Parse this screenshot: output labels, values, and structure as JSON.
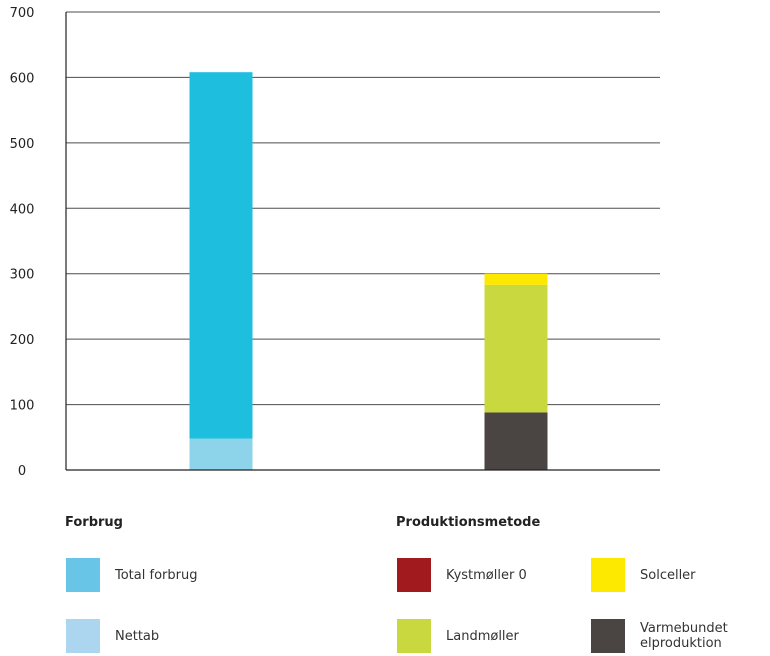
{
  "chart_data": {
    "type": "bar",
    "stacked": true,
    "categories": [
      "Forbrug",
      "Produktionsmetode"
    ],
    "ylim": [
      0,
      700
    ],
    "yticks": [
      0,
      100,
      200,
      300,
      400,
      500,
      600,
      700
    ],
    "grid": true,
    "series": [
      {
        "name": "Nettab",
        "color": "#8dd4ea",
        "values": [
          48,
          0
        ]
      },
      {
        "name": "Total forbrug",
        "color": "#1ebede",
        "values": [
          560,
          0
        ]
      },
      {
        "name": "Varmebundet elproduktion",
        "color": "#4a4442",
        "values": [
          0,
          88
        ]
      },
      {
        "name": "Landmøller",
        "color": "#c9d83f",
        "values": [
          0,
          195
        ]
      },
      {
        "name": "Kystmøller 0",
        "color": "#a11a1e",
        "values": [
          0,
          0
        ]
      },
      {
        "name": "Solceller",
        "color": "#fde800",
        "values": [
          0,
          17
        ]
      }
    ]
  },
  "legend": {
    "forbrug": {
      "title": "Forbrug",
      "items": [
        {
          "label": "Total forbrug",
          "color": "#68c5e8"
        },
        {
          "label": "Nettab",
          "color": "#acd6ef"
        }
      ]
    },
    "produktion": {
      "title": "Produktionsmetode",
      "items": [
        {
          "label": "Kystmøller 0",
          "color": "#a11a1e"
        },
        {
          "label": "Solceller",
          "color": "#fde800"
        },
        {
          "label": "Landmøller",
          "color": "#c9d83f"
        },
        {
          "label": "Varmebundet elproduktion",
          "color": "#4a4442"
        }
      ]
    }
  }
}
